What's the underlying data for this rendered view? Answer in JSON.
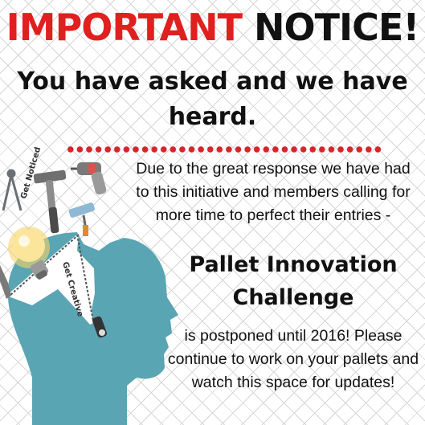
{
  "header": {
    "title_part1": "IMPORTANT",
    "title_part2": "NOTICE!",
    "subtitle": "You have asked and we have heard."
  },
  "body": {
    "paragraph1": "Due to the great response we have had to this initiative and members calling for more time to perfect their entries -",
    "challenge_name": "Pallet Innovation Challenge",
    "paragraph2": "is postponed until 2016! Please continue to work on your pallets and watch this space for updates!"
  },
  "illustration": {
    "label_noticed": "Get Noticed",
    "label_creative": "Get Creative"
  },
  "colors": {
    "accent_red": "#e0201f",
    "head_teal": "#5aa5b3"
  }
}
